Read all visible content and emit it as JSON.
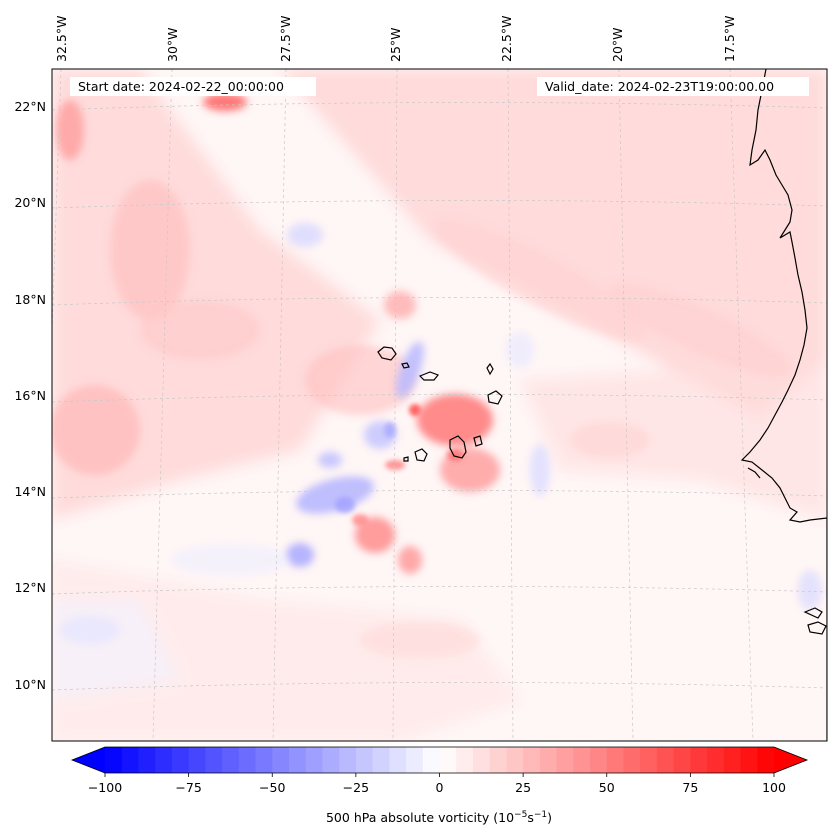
{
  "header": {
    "start_date": "Start date: 2024-02-22_00:00:00",
    "valid_date": "Valid_date: 2024-02-23T19:00:00.00"
  },
  "axes": {
    "longitude_labels": [
      "32.5°W",
      "30°W",
      "27.5°W",
      "25°W",
      "22.5°W",
      "20°W",
      "17.5°W"
    ],
    "latitude_labels": [
      "22°N",
      "20°N",
      "18°N",
      "16°N",
      "14°N",
      "12°N",
      "10°N"
    ]
  },
  "colorbar": {
    "ticks": [
      "−100",
      "−75",
      "−50",
      "−25",
      "0",
      "25",
      "50",
      "75",
      "100"
    ],
    "tick_values": [
      -100,
      -75,
      -50,
      -25,
      0,
      25,
      50,
      75,
      100
    ],
    "vmin": -100,
    "vmax": 100,
    "extend": "both",
    "label": "500 hPa absolute vorticity (10",
    "label_exponent": "−5",
    "label_tail": "s",
    "label_exponent2": "−1",
    "label_close": ")",
    "colors": {
      "min": "#0000ff",
      "mid": "#ffffff",
      "max": "#ff0000"
    }
  }
}
